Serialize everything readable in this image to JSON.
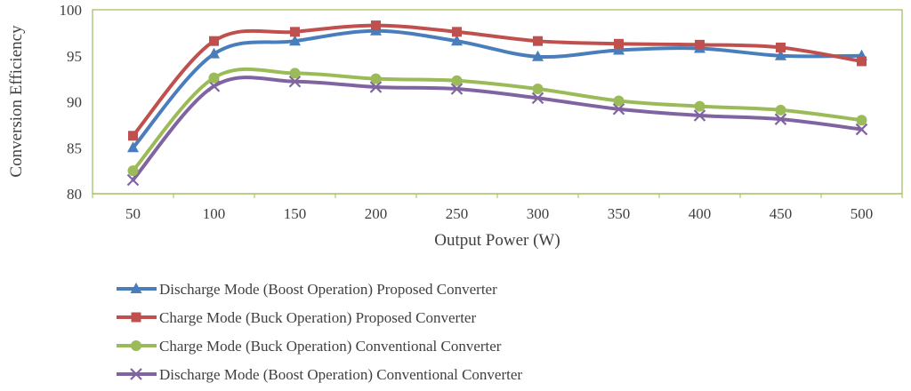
{
  "chart_data": {
    "type": "line",
    "title": "",
    "xlabel": "Output Power (W)",
    "ylabel": "Conversion Efficiency",
    "x": [
      50,
      100,
      150,
      200,
      250,
      300,
      350,
      400,
      450,
      500
    ],
    "ylim": [
      80,
      100
    ],
    "yticks": [
      80,
      85,
      90,
      95,
      100
    ],
    "grid": false,
    "legend_position": "bottom-left",
    "series": [
      {
        "name": "Discharge Mode (Boost Operation) Proposed Converter",
        "color": "#4a7ebb",
        "marker": "triangle",
        "values": [
          85.0,
          95.2,
          96.6,
          97.7,
          96.6,
          94.9,
          95.6,
          95.8,
          95.0,
          95.0
        ]
      },
      {
        "name": "Charge Mode (Buck Operation) Proposed Converter",
        "color": "#c0504d",
        "marker": "square",
        "values": [
          86.3,
          96.6,
          97.6,
          98.3,
          97.6,
          96.6,
          96.3,
          96.2,
          95.9,
          94.4
        ]
      },
      {
        "name": "Charge Mode (Buck Operation) Conventional Converter",
        "color": "#9bbb59",
        "marker": "circle",
        "values": [
          82.5,
          92.6,
          93.1,
          92.5,
          92.3,
          91.4,
          90.1,
          89.5,
          89.1,
          88.0
        ]
      },
      {
        "name": "Discharge Mode (Boost Operation) Conventional Converter",
        "color": "#8064a2",
        "marker": "x",
        "values": [
          81.5,
          91.7,
          92.2,
          91.6,
          91.4,
          90.4,
          89.2,
          88.5,
          88.1,
          87.0
        ]
      }
    ]
  }
}
